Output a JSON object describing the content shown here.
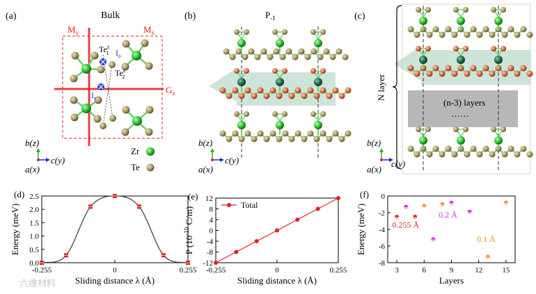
{
  "panels": {
    "a": {
      "label": "(a)",
      "title": "Bulk",
      "my": "M",
      "my_sub": "y",
      "mx": "M",
      "mx_sub": "x",
      "gz": "G",
      "gz_sub": "z",
      "te1": "Te",
      "te1_sup": "z",
      "te1_sub": "1",
      "te2": "Te",
      "te2_sup": "z",
      "te2_sub": "2",
      "ia": "I",
      "ia_sub": "a",
      "ie": "I",
      "ie_sub": "e",
      "axis_b": "b(z)",
      "axis_c": "c(y)",
      "axis_a": "a(x)",
      "legend": [
        {
          "label": "Zr",
          "color": "#3ecf3e"
        },
        {
          "label": "Te",
          "color": "#a89a63"
        }
      ]
    },
    "b": {
      "label": "(b)",
      "title": "P",
      "title_sub": "-1",
      "axis_b": "b(z)",
      "axis_c": "c(y)",
      "axis_a": "a(x)"
    },
    "c": {
      "label": "(c)",
      "n_layer": "N layer",
      "box_text": "(n-3) layers",
      "box_dots": "……",
      "axis_b": "b(z)",
      "axis_c": "c(y)",
      "axis_a": "a(x)"
    }
  },
  "chart_data": [
    {
      "panel": "(d)",
      "type": "line",
      "title": "",
      "xlabel": "Sliding distance λ (Å)",
      "ylabel": "Energy (meV)",
      "xlim": [
        -0.255,
        0.255
      ],
      "ylim": [
        0,
        2.5
      ],
      "xticks": [
        "-0.255",
        "0",
        "0.255"
      ],
      "yticks": [
        "0.0",
        "0.5",
        "1.0",
        "1.5",
        "2.0",
        "2.5"
      ],
      "x": [
        -0.255,
        -0.17,
        -0.085,
        0,
        0.085,
        0.17,
        0.255
      ],
      "series": [
        {
          "name": "Energy",
          "values": [
            0.0,
            0.28,
            2.1,
            2.5,
            2.1,
            0.28,
            0.0
          ]
        }
      ],
      "color": "#e0221f"
    },
    {
      "panel": "(e)",
      "type": "line",
      "title": "",
      "xlabel": "Sliding distance λ (Å)",
      "ylabel": "P (10",
      "ylabel_sup": "-10",
      "ylabel_end": " C/m)",
      "xlim": [
        -0.255,
        0.255
      ],
      "ylim": [
        -12,
        12
      ],
      "xticks": [
        "-0.255",
        "0",
        "0.255"
      ],
      "yticks": [
        "-12",
        "-8",
        "-4",
        "0",
        "4",
        "8",
        "12"
      ],
      "x": [
        -0.255,
        -0.17,
        -0.085,
        0,
        0.085,
        0.17,
        0.255
      ],
      "series": [
        {
          "name": "Total",
          "values": [
            -12,
            -8,
            -4,
            0,
            4,
            8,
            12
          ]
        }
      ],
      "color": "#e0221f"
    },
    {
      "panel": "(f)",
      "type": "scatter",
      "title": "",
      "xlabel": "Layers",
      "ylabel": "Energy (meV)",
      "xlim": [
        2,
        16
      ],
      "ylim": [
        -8,
        0
      ],
      "xticks": [
        "3",
        "6",
        "9",
        "12",
        "15"
      ],
      "yticks": [
        "0",
        "-2",
        "-4",
        "-6",
        "-8"
      ],
      "series": [
        {
          "name": "0.255 Å",
          "color": "#e0221f",
          "x": [
            3,
            5
          ],
          "values": [
            -2.5,
            -2.5
          ]
        },
        {
          "name": "0.2 Å",
          "color": "#d62ad6",
          "x": [
            4,
            7,
            9,
            11
          ],
          "values": [
            -1.3,
            -5.2,
            -0.8,
            -1.9
          ]
        },
        {
          "name": "0.1 Å",
          "color": "#f28a1e",
          "x": [
            6,
            8,
            13,
            15
          ],
          "values": [
            -1.2,
            -1.0,
            -7.3,
            -0.8
          ]
        }
      ]
    }
  ],
  "watermark": "六维材料"
}
